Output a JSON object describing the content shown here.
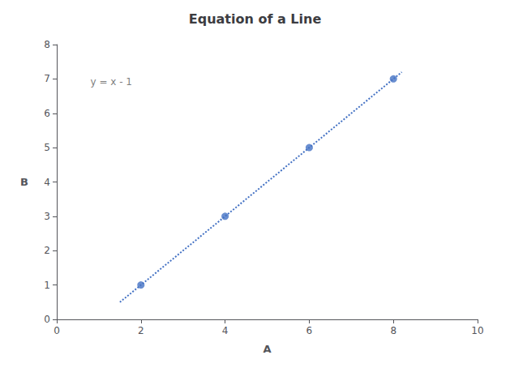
{
  "chart_data": {
    "type": "scatter",
    "title": "Equation of a Line",
    "x_label": "A",
    "y_label": "B",
    "series": [
      {
        "type": "scatter",
        "x": [
          2,
          4,
          6,
          8
        ],
        "values": [
          1,
          3,
          5,
          7
        ],
        "color": "#4472C4",
        "marker": "circle"
      },
      {
        "type": "line",
        "x": [
          1.5,
          8.2
        ],
        "values": [
          0.5,
          7.2
        ],
        "color": "#4472C4",
        "line_style": "dotted"
      }
    ],
    "annotations": [
      {
        "text": "y = x - 1",
        "x": 0.8,
        "y": 7.05
      }
    ],
    "xlim": [
      0,
      10
    ],
    "xticks": [
      0,
      2,
      4,
      6,
      8,
      10
    ],
    "ylim": [
      0,
      8
    ],
    "yticks": [
      0,
      1,
      2,
      3,
      4,
      5,
      6,
      7,
      8
    ],
    "grid": false
  }
}
